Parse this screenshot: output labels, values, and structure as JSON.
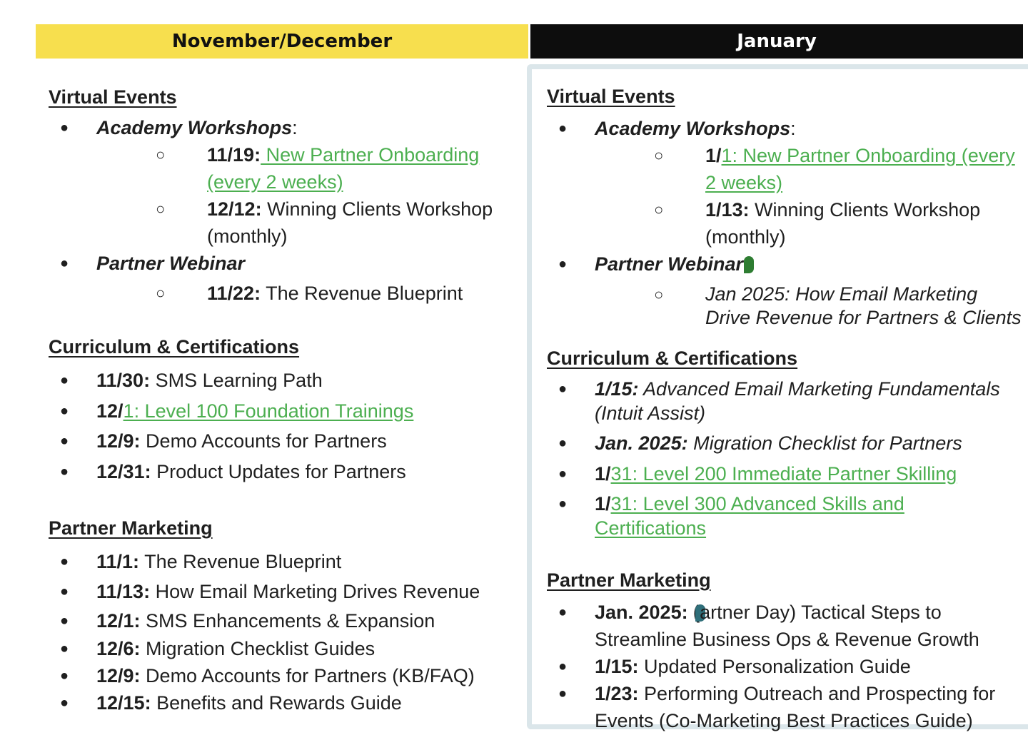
{
  "headers": {
    "left": "November/December",
    "right": "January"
  },
  "left": {
    "virtual_events": {
      "title": "Virtual Events",
      "academy": {
        "label": "Academy Workshops",
        "colon": ":",
        "items": [
          {
            "date": "11/19:",
            "link": " New Partner Onboarding",
            "link2": "(every 2 weeks)"
          },
          {
            "date": "12/12:",
            "text": " Winning Clients Workshop",
            "text2": "(monthly)"
          }
        ]
      },
      "webinar": {
        "label": "Partner Webinar",
        "items": [
          {
            "date": "11/22:",
            "text": " The Revenue Blueprint"
          }
        ]
      }
    },
    "curriculum": {
      "title": "Curriculum & Certifications",
      "items": [
        {
          "date": "11/30:",
          "text": " SMS Learning Path"
        },
        {
          "date": "12/",
          "link": "1: Level 100 Foundation Trainings"
        },
        {
          "date": "12/9:",
          "text": " Demo Accounts for Partners"
        },
        {
          "date": "12/31:",
          "text": " Product Updates for Partners"
        }
      ]
    },
    "marketing": {
      "title": "Partner Marketing",
      "items": [
        {
          "date": "11/1:",
          "text": " The Revenue Blueprint"
        },
        {
          "date": "11/13:",
          "text": " How Email Marketing Drives Revenue"
        },
        {
          "date": "12/1:",
          "text": " SMS Enhancements & Expansion"
        },
        {
          "date": "12/6:",
          "text": " Migration Checklist Guides"
        },
        {
          "date": "12/9:",
          "text": " Demo Accounts for Partners (KB/FAQ)"
        },
        {
          "date": "12/15:",
          "text": " Benefits and Rewards Guide"
        }
      ]
    }
  },
  "right": {
    "virtual_events": {
      "title": "Virtual Events",
      "academy": {
        "label": "Academy Workshops",
        "colon": ":",
        "items": [
          {
            "date": "1/",
            "link": "1: New Partner Onboarding (every",
            "link2": "2 weeks)"
          },
          {
            "date": "1/13:",
            "text": " Winning Clients Workshop",
            "text2": "(monthly)"
          }
        ]
      },
      "webinar": {
        "label": "Partner Webinar",
        "items": [
          {
            "text": "Jan 2025: How Email Marketing",
            "text2": "Drive Revenue for Partners & Clients"
          }
        ]
      }
    },
    "curriculum": {
      "title": "Curriculum & Certifications",
      "items": [
        {
          "date": "1/15:",
          "text": " Advanced Email Marketing Fundamentals",
          "text2": "(Intuit Assist)"
        },
        {
          "date": "Jan. 2025:",
          "text": " Migration Checklist for Partners"
        },
        {
          "date": "1/",
          "link": "31: Level 200 Immediate Partner Skilling"
        },
        {
          "date": "1/",
          "link": "31: Level 300 Advanced Skills and",
          "link2": "Certifications"
        }
      ]
    },
    "marketing": {
      "title": "Partner Marketing",
      "items": [
        {
          "date": "Jan. 2025: (",
          "text": "artner Day) Tactical Steps to",
          "text2": "Streamline Business Ops & Revenue Growth"
        },
        {
          "date": "1/15:",
          "text": " Updated Personalization Guide"
        },
        {
          "date": "1/23:",
          "text": " Performing Outreach and Prospecting for",
          "text2": "Events (Co-Marketing Best Practices Guide)"
        }
      ]
    }
  },
  "colors": {
    "header_left": "#f7df4e",
    "header_right": "#0d0d0d",
    "link": "#4caf50",
    "comment_green": "#2e7d32",
    "comment_teal": "#2f6f7a"
  },
  "icons": {
    "comment_marker": "comment-marker-icon"
  }
}
